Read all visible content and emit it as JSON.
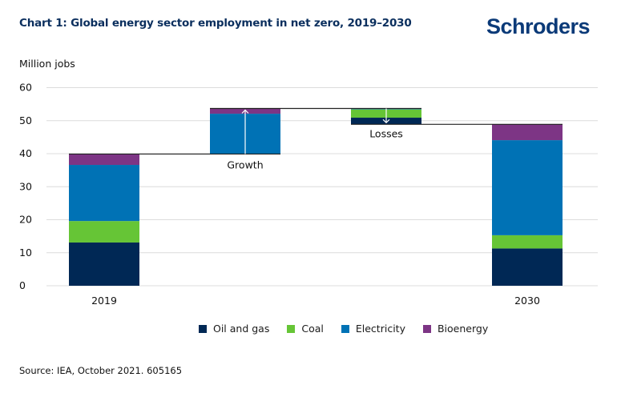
{
  "header": {
    "title": "Chart 1: Global energy sector employment in net zero, 2019–2030",
    "logo_text": "Schroders",
    "logo_color": "#0b3a78"
  },
  "footer": {
    "source": "Source: IEA, October 2021. 605165"
  },
  "chart_data": {
    "type": "bar",
    "subtype": "waterfall-stacked",
    "title": "Chart 1: Global energy sector employment in net zero, 2019–2030",
    "ylabel": "Million jobs",
    "xlabel": "",
    "ylim": [
      0,
      60
    ],
    "yticks": [
      0,
      10,
      20,
      30,
      40,
      50,
      60
    ],
    "grid": true,
    "legend_position": "bottom",
    "categories": [
      "2019",
      "Growth",
      "Losses",
      "2030"
    ],
    "category_labels": [
      "2019",
      "",
      "",
      "2030"
    ],
    "annotations": [
      {
        "category": "Growth",
        "text": "Growth",
        "arrow": "up"
      },
      {
        "category": "Losses",
        "text": "Losses",
        "arrow": "down"
      }
    ],
    "series": [
      {
        "name": "Oil and gas",
        "color": "#002855",
        "values": [
          13.1,
          0,
          2.0,
          11.3
        ]
      },
      {
        "name": "Coal",
        "color": "#66c536",
        "values": [
          6.5,
          0,
          2.5,
          4.0
        ]
      },
      {
        "name": "Electricity",
        "color": "#0072b5",
        "values": [
          17.0,
          12.2,
          0.3,
          28.8
        ]
      },
      {
        "name": "Bioenergy",
        "color": "#7d3585",
        "values": [
          3.3,
          1.6,
          0,
          4.8
        ]
      }
    ],
    "bases": [
      0,
      39.9,
      48.9,
      0
    ],
    "totals": [
      39.9,
      53.7,
      53.7,
      48.9
    ]
  }
}
